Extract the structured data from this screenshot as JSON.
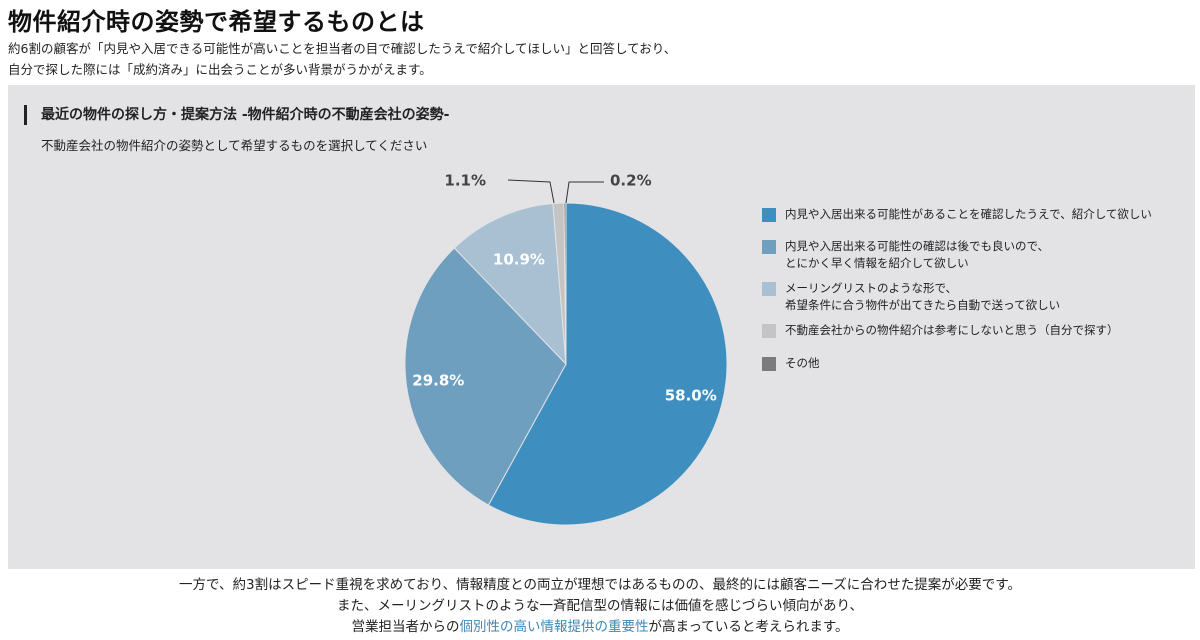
{
  "title": "物件紹介時の姿勢で希望するものとは",
  "intro": [
    "約6割の顧客が「内見や入居できる可能性が高いことを担当者の目で確認したうえで紹介してほしい」と回答しており、",
    "自分で探した際には「成約済み」に出会うことが多い背景がうかがえます。"
  ],
  "chart_data": {
    "type": "pie",
    "title": "最近の物件の探し方・提案方法 -物件紹介時の不動産会社の姿勢-",
    "subtitle": "不動産会社の物件紹介の姿勢として希望するものを選択してください",
    "slices": [
      {
        "label": "内見や入居出来る可能性があることを確認したうえで、紹介して欲しい",
        "value": 58.0,
        "display": "58.0%",
        "color": "#3e8fbf"
      },
      {
        "label": "内見や入居出来る可能性の確認は後でも良いので、\nとにかく早く情報を紹介して欲しい",
        "value": 29.8,
        "display": "29.8%",
        "color": "#6f9fbf"
      },
      {
        "label": "メーリングリストのような形で、\n希望条件に合う物件が出てきたら自動で送って欲しい",
        "value": 10.9,
        "display": "10.9%",
        "color": "#a8c0d2"
      },
      {
        "label": "不動産会社からの物件紹介は参考にしないと思う（自分で探す）",
        "value": 1.1,
        "display": "1.1%",
        "color": "#c4c4c4"
      },
      {
        "label": "その他",
        "value": 0.2,
        "display": "0.2%",
        "color": "#7b7b7b"
      }
    ]
  },
  "outro": {
    "line1": "一方で、約3割はスピード重視を求めており、情報精度との両立が理想ではあるものの、最終的には顧客ニーズに合わせた提案が必要です。",
    "line2": "また、メーリングリストのような一斉配信型の情報には価値を感じづらい傾向があり、",
    "line3_before": "営業担当者からの",
    "line3_highlight": "個別性の高い情報提供の重要性",
    "line3_after": "が高まっていると考えられます。"
  }
}
